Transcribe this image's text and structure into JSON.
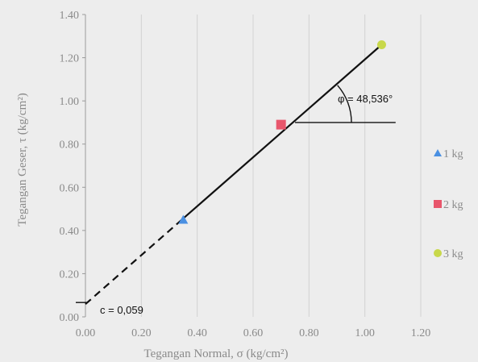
{
  "chart_data": {
    "type": "scatter",
    "xlabel": "Tegangan Normal, σ (kg/cm²)",
    "ylabel": "Tegangan Geser, τ (kg/cm²)",
    "xlim": [
      0,
      1.2
    ],
    "ylim": [
      0,
      1.4
    ],
    "x_ticks": [
      "0.00",
      "0.20",
      "0.40",
      "0.60",
      "0.80",
      "1.00",
      "1.20"
    ],
    "y_ticks": [
      "0.00",
      "0.20",
      "0.40",
      "0.60",
      "0.80",
      "1.00",
      "1.20",
      "1.40"
    ],
    "grid": "vertical",
    "legend_position": "right",
    "series": [
      {
        "name": "1 kg",
        "marker": "triangle",
        "color": "#4a90e2",
        "x": [
          0.35
        ],
        "y": [
          0.45
        ]
      },
      {
        "name": "2 kg",
        "marker": "square",
        "color": "#e8566c",
        "x": [
          0.7
        ],
        "y": [
          0.89
        ]
      },
      {
        "name": "3 kg",
        "marker": "circle",
        "color": "#c8d84a",
        "x": [
          1.06
        ],
        "y": [
          1.26
        ]
      }
    ],
    "envelope": {
      "intercept": 0.059,
      "dashed_x": [
        0.0,
        0.35
      ],
      "solid_x": [
        0.35,
        1.06
      ],
      "color": "#111111"
    },
    "annotations": {
      "cohesion": "c = 0,059",
      "friction_angle": "φ = 48,536°",
      "horizontal_ref": {
        "x": [
          0.75,
          1.11
        ],
        "y": 0.9
      }
    }
  }
}
